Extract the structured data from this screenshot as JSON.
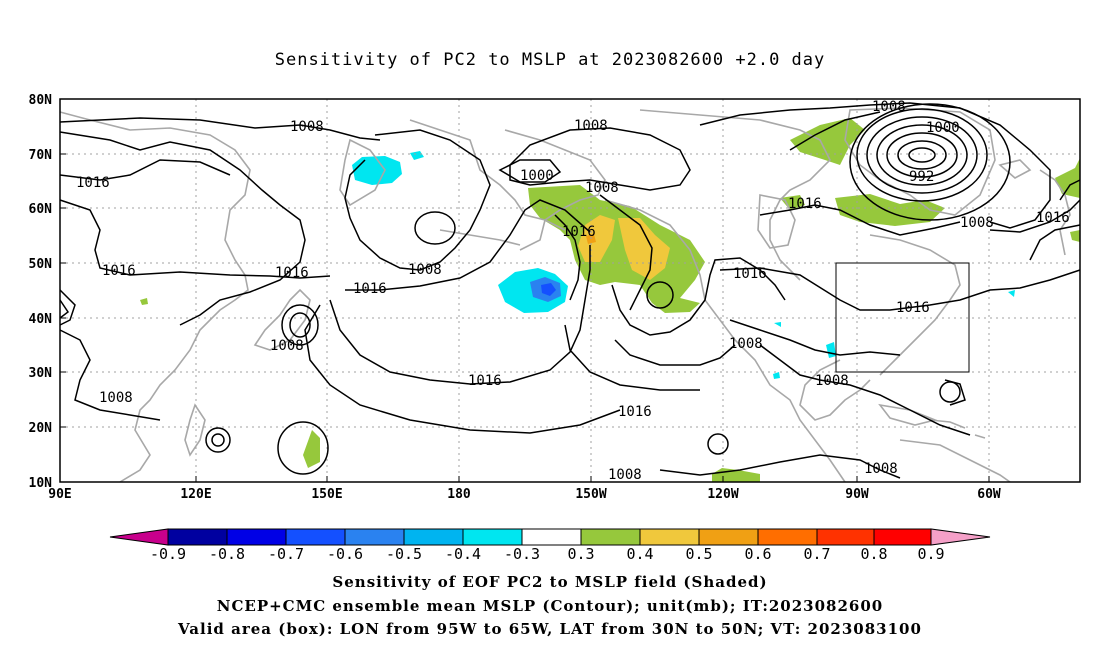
{
  "title": "Sensitivity of PC2 to MSLP at 2023082600 +2.0 day",
  "lat_labels": [
    "80N",
    "70N",
    "60N",
    "50N",
    "40N",
    "30N",
    "20N",
    "10N"
  ],
  "lon_labels": [
    "90E",
    "120E",
    "150E",
    "180",
    "150W",
    "120W",
    "90W",
    "60W"
  ],
  "contour_labels": [
    "1008",
    "1008",
    "1008",
    "1000",
    "1016",
    "1000",
    "1008",
    "992",
    "1016",
    "1008",
    "1016",
    "1016",
    "1016",
    "1016",
    "1016",
    "1008",
    "1016",
    "1008",
    "1016",
    "1016",
    "1008",
    "1008",
    "1008",
    "1016",
    "1008",
    "1008"
  ],
  "colorbar": {
    "labels": [
      "-0.9",
      "-0.8",
      "-0.7",
      "-0.6",
      "-0.5",
      "-0.4",
      "-0.3",
      "0.3",
      "0.4",
      "0.5",
      "0.6",
      "0.7",
      "0.8",
      "0.9"
    ],
    "colors": [
      "#c8008c",
      "#0000a0",
      "#0000e6",
      "#1450ff",
      "#2a82f0",
      "#00b4f0",
      "#00e6f0",
      "#ffffff",
      "#96c83c",
      "#f0c83c",
      "#f0a014",
      "#ff6e00",
      "#ff3200",
      "#ff0000",
      "#f5a0c8"
    ]
  },
  "captions": {
    "line1": "Sensitivity of EOF PC2 to MSLP field (Shaded)",
    "line2": "NCEP+CMC ensemble mean MSLP (Contour); unit(mb); IT:2023082600",
    "line3": "Valid area (box): LON from 95W to 65W, LAT from 30N to 50N; VT: 2023083100"
  }
}
